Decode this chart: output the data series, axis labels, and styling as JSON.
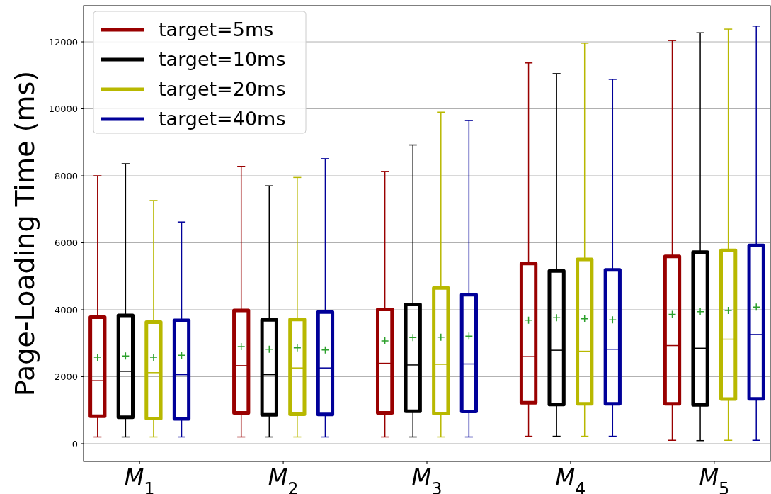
{
  "chart_data": {
    "type": "box",
    "ylabel": "Page-Loading Time (ms)",
    "categories": [
      "M$_{1}$",
      "M$_{2}$",
      "M$_{3}$",
      "M$_{4}$",
      "M$_{5}$"
    ],
    "ylim": [
      -530,
      13080
    ],
    "yticks": [
      0,
      2000,
      4000,
      6000,
      8000,
      10000,
      12000
    ],
    "grid": "y",
    "legend": "top left",
    "series": [
      {
        "name": "target=5ms",
        "color": "#990000",
        "boxes": [
          {
            "low": 200,
            "q1": 820,
            "median": 1880,
            "q3": 3780,
            "high": 8000,
            "mean": 2580
          },
          {
            "low": 200,
            "q1": 920,
            "median": 2330,
            "q3": 3980,
            "high": 8280,
            "mean": 2900
          },
          {
            "low": 200,
            "q1": 920,
            "median": 2400,
            "q3": 4010,
            "high": 8130,
            "mean": 3070
          },
          {
            "low": 220,
            "q1": 1220,
            "median": 2600,
            "q3": 5380,
            "high": 11370,
            "mean": 3690
          },
          {
            "low": 100,
            "q1": 1190,
            "median": 2930,
            "q3": 5590,
            "high": 12040,
            "mean": 3860
          }
        ]
      },
      {
        "name": "target=10ms",
        "color": "#000000",
        "boxes": [
          {
            "low": 200,
            "q1": 790,
            "median": 2160,
            "q3": 3830,
            "high": 8360,
            "mean": 2620
          },
          {
            "low": 200,
            "q1": 860,
            "median": 2060,
            "q3": 3700,
            "high": 7700,
            "mean": 2820
          },
          {
            "low": 200,
            "q1": 970,
            "median": 2350,
            "q3": 4160,
            "high": 8920,
            "mean": 3170
          },
          {
            "low": 220,
            "q1": 1170,
            "median": 2790,
            "q3": 5160,
            "high": 11050,
            "mean": 3760
          },
          {
            "low": 90,
            "q1": 1160,
            "median": 2850,
            "q3": 5720,
            "high": 12270,
            "mean": 3940
          }
        ]
      },
      {
        "name": "target=20ms",
        "color": "#b8b800",
        "boxes": [
          {
            "low": 200,
            "q1": 750,
            "median": 2120,
            "q3": 3630,
            "high": 7260,
            "mean": 2580
          },
          {
            "low": 200,
            "q1": 880,
            "median": 2260,
            "q3": 3710,
            "high": 7950,
            "mean": 2860
          },
          {
            "low": 200,
            "q1": 900,
            "median": 2370,
            "q3": 4650,
            "high": 9900,
            "mean": 3180
          },
          {
            "low": 220,
            "q1": 1190,
            "median": 2760,
            "q3": 5500,
            "high": 11960,
            "mean": 3730
          },
          {
            "low": 100,
            "q1": 1330,
            "median": 3120,
            "q3": 5770,
            "high": 12380,
            "mean": 3980
          }
        ]
      },
      {
        "name": "target=40ms",
        "color": "#000099",
        "boxes": [
          {
            "low": 200,
            "q1": 740,
            "median": 2060,
            "q3": 3680,
            "high": 6620,
            "mean": 2640
          },
          {
            "low": 200,
            "q1": 870,
            "median": 2260,
            "q3": 3930,
            "high": 8510,
            "mean": 2800
          },
          {
            "low": 200,
            "q1": 960,
            "median": 2380,
            "q3": 4450,
            "high": 9650,
            "mean": 3210
          },
          {
            "low": 220,
            "q1": 1190,
            "median": 2820,
            "q3": 5190,
            "high": 10880,
            "mean": 3700
          },
          {
            "low": 100,
            "q1": 1340,
            "median": 3260,
            "q3": 5920,
            "high": 12470,
            "mean": 4080
          }
        ]
      }
    ]
  }
}
